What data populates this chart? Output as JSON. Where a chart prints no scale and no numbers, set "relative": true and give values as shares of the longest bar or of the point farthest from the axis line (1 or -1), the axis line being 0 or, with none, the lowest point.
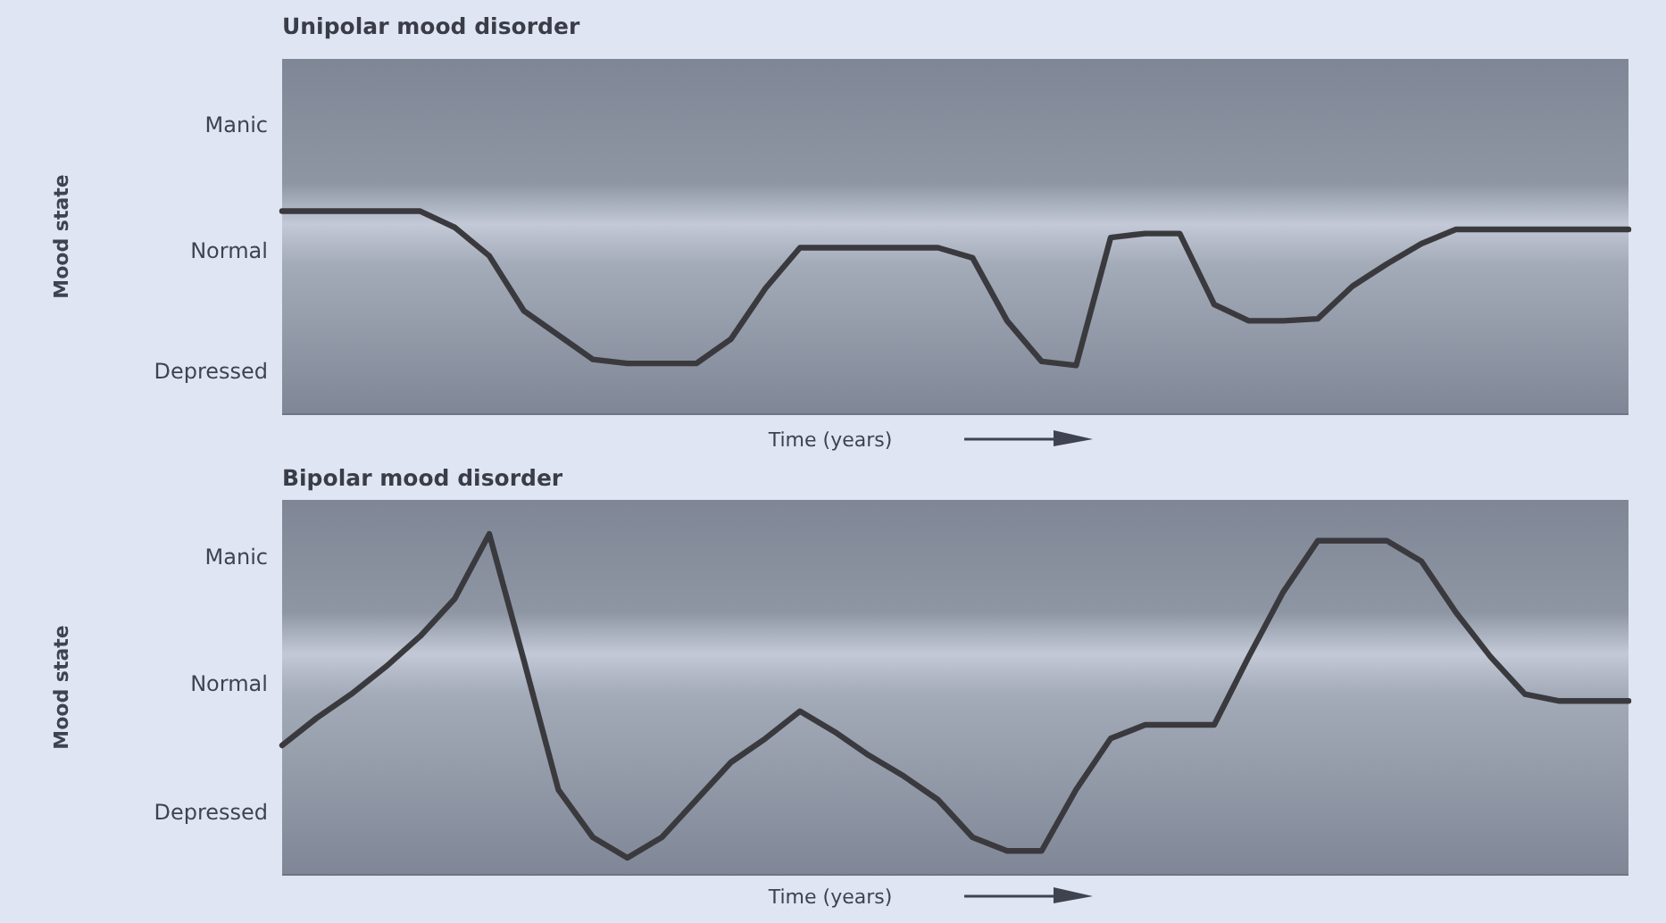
{
  "chart_data": [
    {
      "type": "line",
      "title": "Unipolar mood disorder",
      "xlabel": "Time (years)",
      "ylabel": "Mood state",
      "relative": true,
      "annotations": [
        "Manic",
        "Normal",
        "Depressed"
      ],
      "categories": [
        null,
        null,
        null,
        null,
        null,
        null,
        null,
        null,
        null,
        null,
        null,
        null,
        null,
        null,
        null,
        null,
        null,
        null,
        null,
        null,
        null,
        null,
        null,
        null,
        null,
        null,
        null,
        null,
        null,
        null,
        null,
        null,
        null,
        null,
        null,
        null,
        null,
        null,
        null,
        null
      ],
      "series": [
        {
          "color": "#3a3a3e",
          "values": [
            1,
            1,
            1,
            1,
            1,
            0.92,
            0.78,
            0.51,
            0.39,
            0.27,
            0.25,
            0.25,
            0.25,
            0.37,
            0.62,
            0.82,
            0.82,
            0.82,
            0.82,
            0.82,
            0.77,
            0.46,
            0.26,
            0.24,
            0.87,
            0.89,
            0.89,
            0.54,
            0.46,
            0.46,
            0.47,
            0.63,
            0.74,
            0.84,
            0.91,
            0.91,
            0.91,
            0.91,
            0.91,
            0.91
          ]
        }
      ],
      "marker": "none",
      "line_style": "solid"
    },
    {
      "type": "line",
      "title": "Bipolar mood disorder",
      "xlabel": "Time (years)",
      "ylabel": "Mood state",
      "relative": true,
      "annotations": [
        "Manic",
        "Normal",
        "Depressed"
      ],
      "categories": [
        null,
        null,
        null,
        null,
        null,
        null,
        null,
        null,
        null,
        null,
        null,
        null,
        null,
        null,
        null,
        null,
        null,
        null,
        null,
        null,
        null,
        null,
        null,
        null,
        null,
        null,
        null,
        null,
        null,
        null,
        null,
        null,
        null,
        null,
        null,
        null,
        null,
        null,
        null,
        null
      ],
      "series": [
        {
          "color": "#3a3a3e",
          "values": [
            0.38,
            0.46,
            0.53,
            0.61,
            0.7,
            0.81,
            1,
            0.63,
            0.25,
            0.11,
            0.05,
            0.11,
            0.22,
            0.33,
            0.4,
            0.48,
            0.42,
            0.35,
            0.29,
            0.22,
            0.11,
            0.07,
            0.07,
            0.25,
            0.4,
            0.44,
            0.44,
            0.44,
            0.64,
            0.83,
            0.98,
            0.98,
            0.98,
            0.92,
            0.77,
            0.64,
            0.53,
            0.51,
            0.51,
            0.51
          ]
        }
      ],
      "marker": "none",
      "line_style": "solid"
    }
  ]
}
